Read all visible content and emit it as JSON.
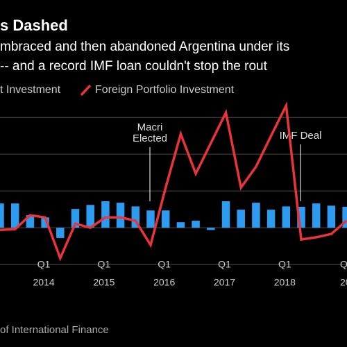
{
  "chart_data": {
    "type": "bar-line",
    "title": "s Dashed",
    "subtitle": [
      "mbraced and then abandoned Argentina under its",
      "-- and a record IMF loan couldn't stop the rout"
    ],
    "source": "of International Finance",
    "categories": [
      null,
      null,
      null,
      [
        "Q1",
        "2014"
      ],
      null,
      null,
      null,
      [
        "Q1",
        "2015"
      ],
      null,
      null,
      null,
      [
        "Q1",
        "2016"
      ],
      null,
      null,
      null,
      [
        "Q1",
        "2017"
      ],
      null,
      null,
      null,
      [
        "Q1",
        "2018"
      ],
      null,
      null,
      null,
      [
        "Q",
        "20"
      ]
    ],
    "series": [
      {
        "name": "t Investment",
        "type": "bar",
        "color": "#2d9bf0",
        "values": [
          0.66,
          0.66,
          0.34,
          0.28,
          -0.28,
          0.51,
          0.62,
          0.72,
          0.68,
          0.58,
          0.47,
          0.47,
          0.15,
          0.19,
          -0.06,
          0.72,
          0.49,
          0.68,
          0.49,
          0.58,
          0.57,
          0.66,
          0.6,
          0.57
        ]
      },
      {
        "name": "Foreign Portfolio Investment",
        "type": "line",
        "color": "#e8343a",
        "values": [
          -0.06,
          -0.04,
          0.34,
          0.28,
          -0.83,
          0.11,
          0.0,
          0.28,
          0.28,
          0.19,
          -0.47,
          1.09,
          2.55,
          1.47,
          2.3,
          3.13,
          1.09,
          1.66,
          2.5,
          3.32,
          -0.32,
          -0.26,
          -0.17,
          0.19
        ]
      }
    ],
    "annotations": [
      {
        "text": [
          "Macri",
          "Elected"
        ],
        "category": 10
      },
      {
        "text": [
          "IMF Deal"
        ],
        "category": 20
      }
    ],
    "ylim": [
      -1.3,
      3.4
    ],
    "yticks": [
      -1,
      0,
      1,
      2,
      3
    ],
    "grid": true
  }
}
